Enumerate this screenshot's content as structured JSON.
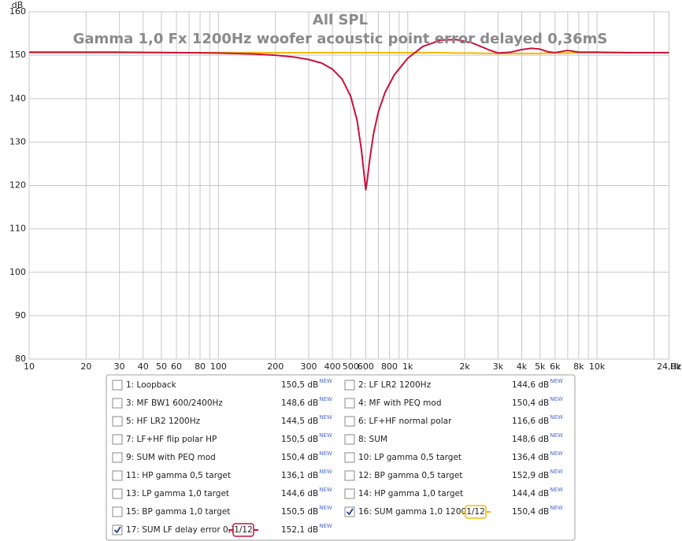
{
  "chart_data": {
    "type": "line",
    "title": "All SPL",
    "subtitle": "Gamma 1,0 Fx 1200Hz woofer acoustic point error delayed 0,36mS",
    "y_label": "dB",
    "x_label": "Hz",
    "log_x": true,
    "grid": true,
    "xlim": [
      10,
      24000
    ],
    "ylim": [
      80,
      160
    ],
    "yticks": [
      80,
      90,
      100,
      110,
      120,
      130,
      140,
      150,
      160
    ],
    "xticks": [
      10,
      20,
      30,
      40,
      50,
      60,
      {
        "value": 70,
        "label": null
      },
      80,
      {
        "value": 90,
        "label": null
      },
      100,
      200,
      300,
      400,
      500,
      600,
      {
        "value": 700,
        "label": null
      },
      800,
      {
        "value": 900,
        "label": null
      },
      {
        "value": 1000,
        "label": "1k"
      },
      {
        "value": 2000,
        "label": "2k"
      },
      {
        "value": 3000,
        "label": "3k"
      },
      {
        "value": 4000,
        "label": "4k"
      },
      {
        "value": 5000,
        "label": "5k"
      },
      {
        "value": 6000,
        "label": "6k"
      },
      {
        "value": 7000,
        "label": null
      },
      {
        "value": 8000,
        "label": "8k"
      },
      {
        "value": 9000,
        "label": null
      },
      {
        "value": 10000,
        "label": "10k"
      },
      {
        "value": 20000,
        "label": null
      },
      {
        "value": 24000,
        "label": "24,0k"
      }
    ],
    "x": [
      10,
      30,
      60,
      100,
      150,
      200,
      250,
      300,
      350,
      400,
      450,
      500,
      540,
      570,
      590,
      600,
      610,
      630,
      660,
      700,
      760,
      850,
      1000,
      1200,
      1500,
      1800,
      2200,
      2700,
      3000,
      3500,
      4000,
      4500,
      5000,
      5500,
      6000,
      7000,
      8000,
      10000,
      15000,
      24000
    ],
    "series": [
      {
        "color": "#f8b800",
        "values": [
          150.6,
          150.6,
          150.6,
          150.6,
          150.6,
          150.6,
          150.6,
          150.6,
          150.6,
          150.6,
          150.6,
          150.6,
          150.6,
          150.6,
          150.6,
          150.6,
          150.6,
          150.6,
          150.6,
          150.6,
          150.6,
          150.6,
          150.6,
          150.6,
          150.6,
          150.5,
          150.5,
          150.4,
          150.4,
          150.4,
          150.4,
          150.4,
          150.4,
          150.5,
          150.5,
          150.5,
          150.6,
          150.6,
          150.6,
          150.6
        ]
      },
      {
        "color": "#c8103c",
        "values": [
          150.7,
          150.7,
          150.6,
          150.5,
          150.3,
          150.0,
          149.6,
          149.0,
          148.2,
          146.8,
          144.5,
          140.5,
          135,
          128,
          122,
          119,
          121,
          126,
          132,
          137,
          141.5,
          145.5,
          149.3,
          152,
          153.5,
          153.6,
          152.8,
          151.2,
          150.5,
          150.7,
          151.3,
          151.6,
          151.4,
          150.8,
          150.6,
          151.1,
          150.7,
          150.7,
          150.6,
          150.6
        ]
      }
    ]
  },
  "legend_badge_text": "NEW",
  "legend": [
    {
      "label": "1: Loopback",
      "value": "150,5 dB",
      "color": "#1c3c9c",
      "checked": false
    },
    {
      "label": "2: LF LR2 1200Hz",
      "value": "144,6 dB",
      "color": "#3c8c1c",
      "checked": false
    },
    {
      "label": "3: MF BW1 600/2400Hz",
      "value": "148,6 dB",
      "color": "#f0c030",
      "checked": false
    },
    {
      "label": "4: MF with PEQ mod",
      "value": "150,4 dB",
      "color": "#e87800",
      "checked": false
    },
    {
      "label": "5: HF LR2 1200Hz",
      "value": "144,5 dB",
      "color": "#3c8c1c",
      "checked": false
    },
    {
      "label": "6: LF+HF normal polar",
      "value": "116,6 dB",
      "color": "#605810",
      "checked": false
    },
    {
      "label": "7: LF+HF flip polar HP",
      "value": "150,5 dB",
      "color": "#605810",
      "checked": false
    },
    {
      "label": "8: SUM",
      "value": "148,6 dB",
      "color": "#c8103c",
      "checked": false
    },
    {
      "label": "9: SUM with PEQ mod",
      "value": "150,4 dB",
      "color": "#3c9c1c",
      "checked": false
    },
    {
      "label": "10: LP gamma 0,5 target",
      "value": "136,4 dB",
      "color": "#e030d0",
      "checked": false
    },
    {
      "label": "11: HP gamma 0,5 target",
      "value": "136,1 dB",
      "color": "#c020b0",
      "checked": false
    },
    {
      "label": "12: BP gamma 0,5 target",
      "value": "152,9 dB",
      "color": "#d030c0",
      "checked": false
    },
    {
      "label": "13: LP gamma 1,0 target",
      "value": "144,6 dB",
      "color": "#80d040",
      "checked": false
    },
    {
      "label": "14: HP gamma 1,0 target",
      "value": "144,4 dB",
      "color": "#80d040",
      "checked": false
    },
    {
      "label": "15: BP gamma 1,0 target",
      "value": "150,5 dB",
      "color": "#80d040",
      "checked": false
    },
    {
      "label": "16: SUM gamma 1,0 1200H",
      "value": "150,4 dB",
      "color": "#f8b800",
      "checked": true,
      "smoothing": "1/12"
    },
    {
      "label": "17: SUM LF delay error 0,3",
      "value": "152,1 dB",
      "color": "#c8103c",
      "checked": true,
      "smoothing": "1/12"
    }
  ]
}
